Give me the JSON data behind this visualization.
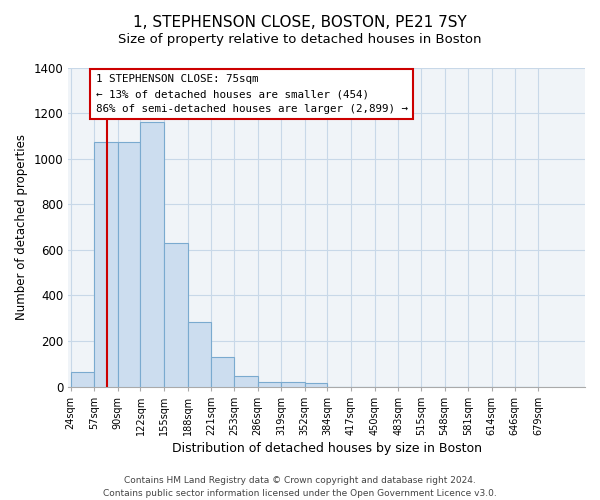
{
  "title": "1, STEPHENSON CLOSE, BOSTON, PE21 7SY",
  "subtitle": "Size of property relative to detached houses in Boston",
  "xlabel": "Distribution of detached houses by size in Boston",
  "ylabel": "Number of detached properties",
  "bar_values": [
    65,
    1075,
    1075,
    1160,
    630,
    285,
    130,
    47,
    20,
    20,
    15,
    0,
    0,
    0,
    0,
    0,
    0,
    0,
    0,
    0
  ],
  "bar_labels": [
    "24sqm",
    "57sqm",
    "90sqm",
    "122sqm",
    "155sqm",
    "188sqm",
    "221sqm",
    "253sqm",
    "286sqm",
    "319sqm",
    "352sqm",
    "384sqm",
    "417sqm",
    "450sqm",
    "483sqm",
    "515sqm",
    "548sqm",
    "581sqm",
    "614sqm",
    "646sqm",
    "679sqm"
  ],
  "bar_color": "#ccddef",
  "bar_edge_color": "#7aaacf",
  "vline_color": "#cc0000",
  "annotation_title": "1 STEPHENSON CLOSE: 75sqm",
  "annotation_line1": "← 13% of detached houses are smaller (454)",
  "annotation_line2": "86% of semi-detached houses are larger (2,899) →",
  "annotation_box_color": "white",
  "annotation_box_edge": "#cc0000",
  "ylim": [
    0,
    1400
  ],
  "yticks": [
    0,
    200,
    400,
    600,
    800,
    1000,
    1200,
    1400
  ],
  "bin_edges_sqm": [
    24,
    57,
    90,
    122,
    155,
    188,
    221,
    253,
    286,
    319,
    352,
    384,
    417,
    450,
    483,
    515,
    548,
    581,
    614,
    646,
    679
  ],
  "footer_line1": "Contains HM Land Registry data © Crown copyright and database right 2024.",
  "footer_line2": "Contains public sector information licensed under the Open Government Licence v3.0.",
  "title_fontsize": 11,
  "subtitle_fontsize": 9.5,
  "xlabel_fontsize": 9,
  "ylabel_fontsize": 8.5,
  "footer_fontsize": 6.5,
  "vline_sqm": 75,
  "grid_color": "#c8d8e8",
  "bg_color": "#f0f4f8"
}
